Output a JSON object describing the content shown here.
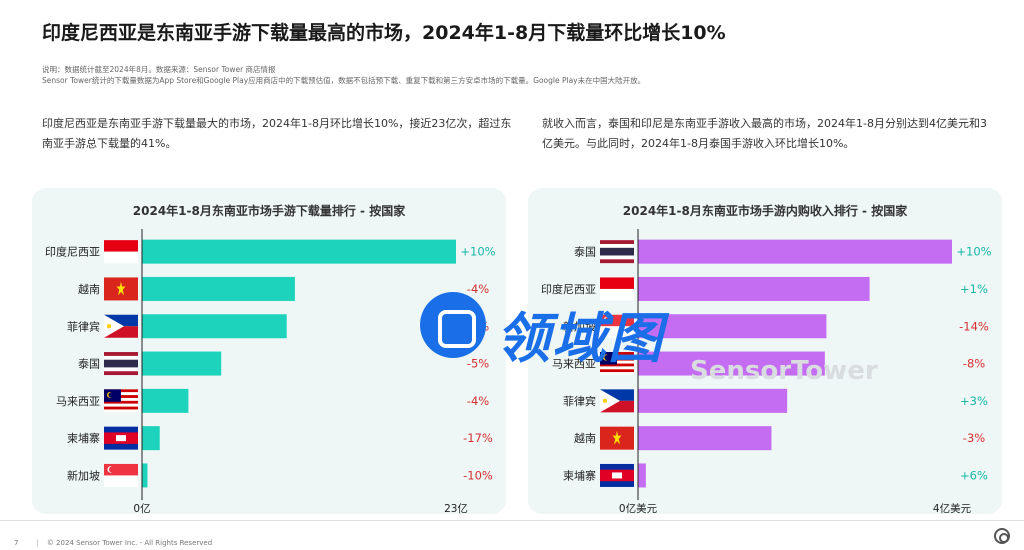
{
  "title": "印度尼西亚是东南亚手游下载量最高的市场，2024年1-8月下载量环比增长10%",
  "notes": {
    "line1": "说明：数据统计截至2024年8月。数据来源：Sensor Tower 商店情报",
    "line2": "Sensor Tower统计的下载量数据为App Store和Google Play应用商店中的下载预估值，数据不包括预下载、重复下载和第三方安卓市场的下载量。Google Play未在中国大陆开放。"
  },
  "paragraphs": {
    "left": "印度尼西亚是东南亚手游下载量最大的市场，2024年1-8月环比增长10%，接近23亿次，超过东南亚手游总下载量的41%。",
    "right": "就收入而言，泰国和印尼是东南亚手游收入最高的市场，2024年1-8月分别达到4亿美元和3亿美元。与此同时，2024年1-8月泰国手游收入环比增长10%。"
  },
  "colors": {
    "teal": "#1ed3bb",
    "purple": "#c46cf2",
    "positive": "#17b7a6",
    "negative": "#d63031"
  },
  "chart_data": [
    {
      "type": "bar",
      "orientation": "horizontal",
      "title": "2024年1-8月东南亚市场手游下载量排行 - 按国家",
      "unit": "亿",
      "categories": [
        "印度尼西亚",
        "越南",
        "菲律宾",
        "泰国",
        "马来西亚",
        "柬埔寨",
        "新加坡"
      ],
      "values": [
        23,
        11.2,
        10.6,
        5.8,
        3.4,
        1.3,
        0.4
      ],
      "changes": [
        "+10%",
        "-4%",
        "-3%",
        "-5%",
        "-4%",
        "-17%",
        "-10%"
      ],
      "axis_labels": [
        "0亿",
        "23亿"
      ],
      "xlim": [
        0,
        23
      ],
      "flags": [
        "indonesia-flag",
        "vietnam-flag",
        "philippines-flag",
        "thailand-flag",
        "malaysia-flag",
        "cambodia-flag",
        "singapore-flag"
      ]
    },
    {
      "type": "bar",
      "orientation": "horizontal",
      "title": "2024年1-8月东南亚市场手游内购收入排行 - 按国家",
      "unit": "亿美元",
      "categories": [
        "泰国",
        "印度尼西亚",
        "新加坡",
        "马来西亚",
        "菲律宾",
        "越南",
        "柬埔寨"
      ],
      "values": [
        4,
        2.95,
        2.4,
        2.38,
        1.9,
        1.7,
        0.1
      ],
      "changes": [
        "+10%",
        "+1%",
        "-14%",
        "-8%",
        "+3%",
        "-3%",
        "+6%"
      ],
      "axis_labels": [
        "0亿美元",
        "4亿美元"
      ],
      "xlim": [
        0,
        4
      ],
      "flags": [
        "thailand-flag",
        "indonesia-flag",
        "singapore-flag",
        "malaysia-flag",
        "philippines-flag",
        "vietnam-flag",
        "cambodia-flag"
      ]
    }
  ],
  "watermark": {
    "brand": "领域图",
    "sensor_tower": "SensorTower"
  },
  "footer": {
    "page_number": "7",
    "copyright": "© 2024 Sensor Tower Inc. - All Rights Reserved"
  }
}
